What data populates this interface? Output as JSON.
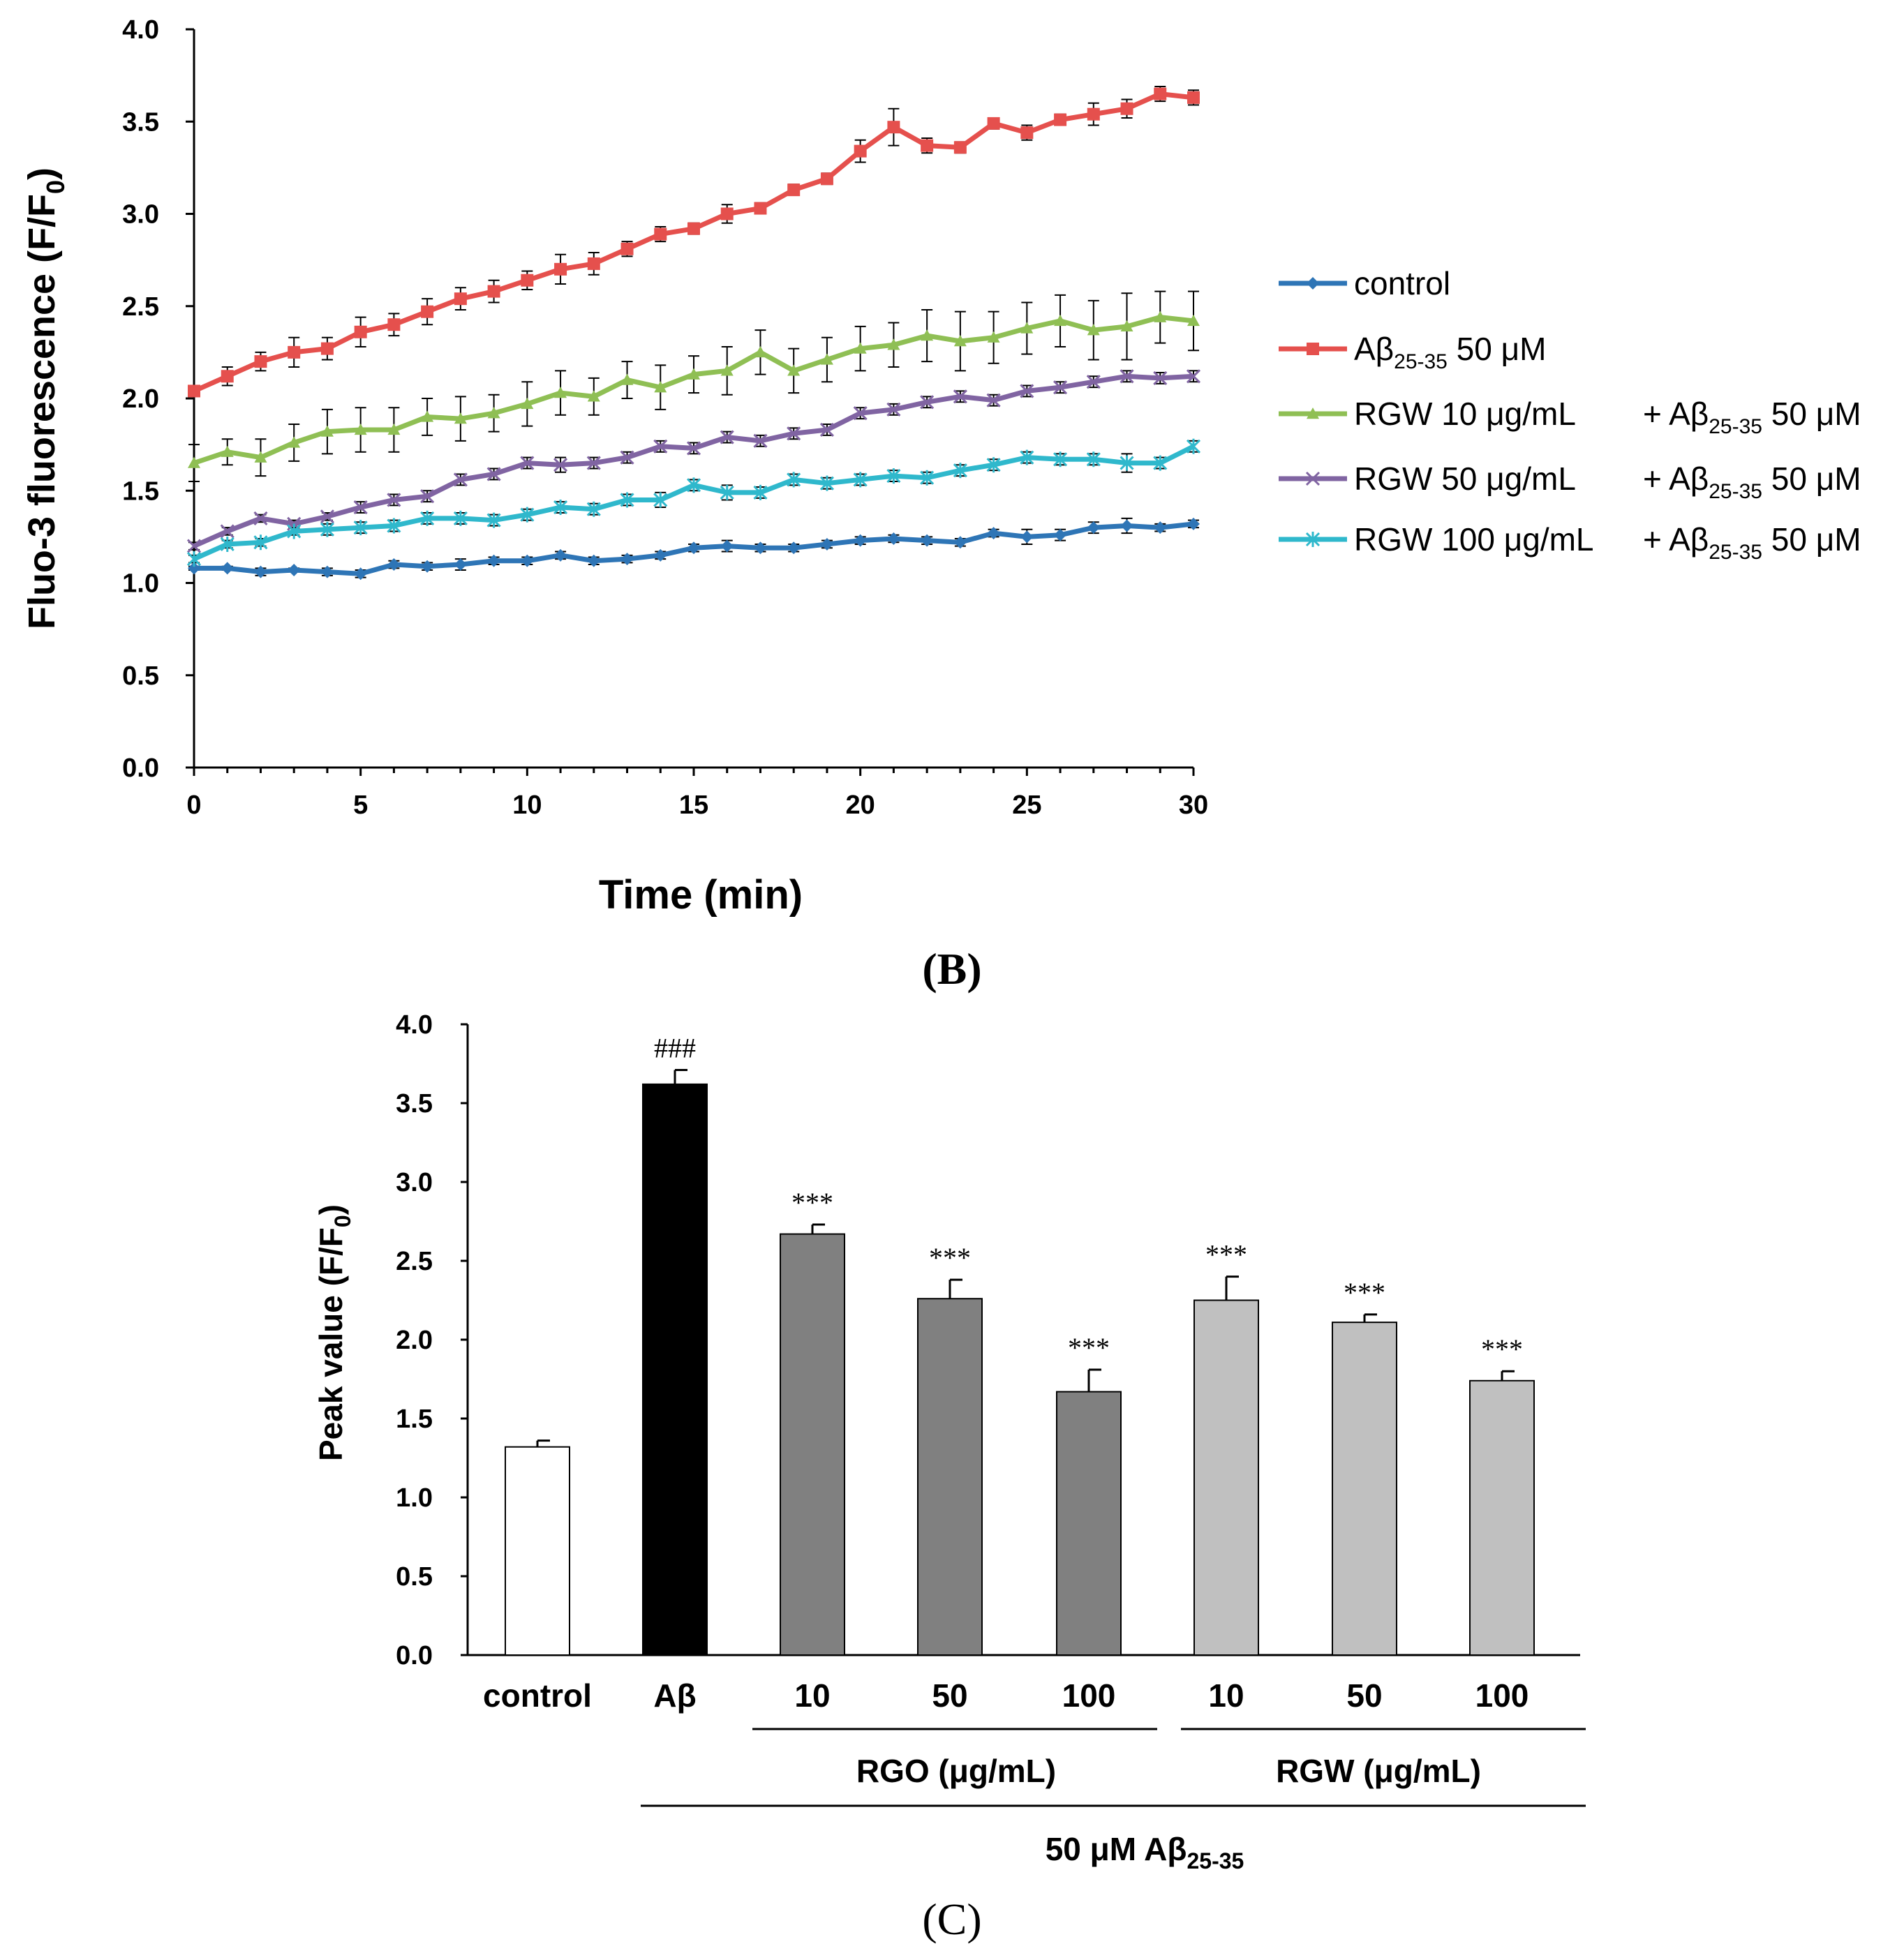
{
  "chart_data": [
    {
      "type": "line",
      "panel_label": "(B)",
      "xlabel": "Time (min)",
      "ylabel_main": "Fluo-3 fluorescence (F/F",
      "ylabel_sub": "0",
      "ylabel_close": ")",
      "xlim": [
        0,
        30
      ],
      "ylim": [
        0,
        4.0
      ],
      "x_ticks": [
        "0",
        "5",
        "10",
        "15",
        "20",
        "25",
        "30"
      ],
      "y_ticks": [
        "0.0",
        "0.5",
        "1.0",
        "1.5",
        "2.0",
        "2.5",
        "3.0",
        "3.5",
        "4.0"
      ],
      "x": [
        0,
        1,
        2,
        3,
        4,
        5,
        6,
        7,
        8,
        9,
        10,
        11,
        12,
        13,
        14,
        15,
        16,
        17,
        18,
        19,
        20,
        21,
        22,
        23,
        24,
        25,
        26,
        27,
        28,
        29,
        30
      ],
      "series": [
        {
          "name": "control",
          "legend_label": "control",
          "color": "#2e75b6",
          "marker": "diamond",
          "values": [
            1.08,
            1.08,
            1.06,
            1.07,
            1.06,
            1.05,
            1.1,
            1.09,
            1.1,
            1.12,
            1.12,
            1.15,
            1.12,
            1.13,
            1.15,
            1.19,
            1.2,
            1.19,
            1.19,
            1.21,
            1.23,
            1.24,
            1.23,
            1.22,
            1.27,
            1.25,
            1.26,
            1.3,
            1.31,
            1.3,
            1.32
          ],
          "errors": [
            0.01,
            0.01,
            0.02,
            0.01,
            0.02,
            0.02,
            0.02,
            0.02,
            0.03,
            0.02,
            0.02,
            0.02,
            0.02,
            0.02,
            0.02,
            0.02,
            0.03,
            0.02,
            0.02,
            0.02,
            0.02,
            0.02,
            0.02,
            0.02,
            0.02,
            0.04,
            0.03,
            0.03,
            0.04,
            0.02,
            0.02
          ]
        },
        {
          "name": "Abeta 50 uM",
          "legend_label": "Aβ",
          "legend_sub": "25-35",
          "legend_suffix": " 50 μM",
          "color": "#e5504d",
          "marker": "square",
          "values": [
            2.04,
            2.12,
            2.2,
            2.25,
            2.27,
            2.36,
            2.4,
            2.47,
            2.54,
            2.58,
            2.64,
            2.7,
            2.73,
            2.81,
            2.89,
            2.92,
            3.0,
            3.03,
            3.13,
            3.19,
            3.34,
            3.47,
            3.37,
            3.36,
            3.49,
            3.44,
            3.51,
            3.54,
            3.57,
            3.65,
            3.63
          ],
          "errors": [
            0.02,
            0.05,
            0.05,
            0.08,
            0.06,
            0.08,
            0.06,
            0.07,
            0.06,
            0.06,
            0.05,
            0.08,
            0.06,
            0.04,
            0.04,
            0.03,
            0.05,
            0.03,
            0.03,
            0.03,
            0.06,
            0.1,
            0.04,
            0.03,
            0.03,
            0.04,
            0.03,
            0.06,
            0.05,
            0.04,
            0.04
          ]
        },
        {
          "name": "RGW 10 + Abeta",
          "legend_label": "RGW 10 μg/mL",
          "legend_plus": "+ Aβ",
          "legend_sub": "25-35",
          "legend_suffix": " 50 μM",
          "color": "#8fbf54",
          "marker": "triangle",
          "values": [
            1.65,
            1.71,
            1.68,
            1.76,
            1.82,
            1.83,
            1.83,
            1.9,
            1.89,
            1.92,
            1.97,
            2.03,
            2.01,
            2.1,
            2.06,
            2.13,
            2.15,
            2.25,
            2.15,
            2.21,
            2.27,
            2.29,
            2.34,
            2.31,
            2.33,
            2.38,
            2.42,
            2.37,
            2.39,
            2.44,
            2.42
          ],
          "errors": [
            0.1,
            0.07,
            0.1,
            0.1,
            0.12,
            0.12,
            0.12,
            0.1,
            0.12,
            0.1,
            0.12,
            0.12,
            0.1,
            0.1,
            0.12,
            0.1,
            0.13,
            0.12,
            0.12,
            0.12,
            0.12,
            0.12,
            0.14,
            0.16,
            0.14,
            0.14,
            0.14,
            0.16,
            0.18,
            0.14,
            0.16
          ]
        },
        {
          "name": "RGW 50 + Abeta",
          "legend_label": "RGW 50 μg/mL",
          "legend_plus": "+ Aβ",
          "legend_sub": "25-35",
          "legend_suffix": " 50 μM",
          "color": "#8064a2",
          "marker": "x",
          "values": [
            1.2,
            1.28,
            1.35,
            1.32,
            1.36,
            1.41,
            1.45,
            1.47,
            1.56,
            1.59,
            1.65,
            1.64,
            1.65,
            1.68,
            1.74,
            1.73,
            1.79,
            1.77,
            1.81,
            1.83,
            1.92,
            1.94,
            1.98,
            2.01,
            1.99,
            2.04,
            2.06,
            2.09,
            2.12,
            2.11,
            2.12
          ],
          "errors": [
            0.02,
            0.02,
            0.02,
            0.02,
            0.02,
            0.03,
            0.03,
            0.03,
            0.03,
            0.03,
            0.03,
            0.04,
            0.03,
            0.03,
            0.03,
            0.03,
            0.03,
            0.03,
            0.03,
            0.03,
            0.03,
            0.03,
            0.03,
            0.03,
            0.03,
            0.03,
            0.03,
            0.03,
            0.03,
            0.03,
            0.03
          ]
        },
        {
          "name": "RGW 100 + Abeta",
          "legend_label": "RGW 100 μg/mL",
          "legend_plus": "+ Aβ",
          "legend_sub": "25-35",
          "legend_suffix": " 50 μM",
          "color": "#2fb8cc",
          "marker": "star",
          "values": [
            1.13,
            1.21,
            1.22,
            1.28,
            1.29,
            1.3,
            1.31,
            1.35,
            1.35,
            1.34,
            1.37,
            1.41,
            1.4,
            1.45,
            1.45,
            1.53,
            1.49,
            1.49,
            1.56,
            1.54,
            1.56,
            1.58,
            1.57,
            1.61,
            1.64,
            1.68,
            1.67,
            1.67,
            1.65,
            1.65,
            1.74
          ],
          "errors": [
            0.02,
            0.02,
            0.02,
            0.02,
            0.03,
            0.03,
            0.03,
            0.03,
            0.03,
            0.03,
            0.03,
            0.03,
            0.03,
            0.03,
            0.04,
            0.03,
            0.04,
            0.03,
            0.03,
            0.03,
            0.03,
            0.03,
            0.03,
            0.03,
            0.03,
            0.03,
            0.03,
            0.03,
            0.05,
            0.03,
            0.03
          ]
        }
      ]
    },
    {
      "type": "bar",
      "panel_label": "(C)",
      "ylabel_main": "Peak value (F/F",
      "ylabel_sub": "0",
      "ylabel_close": ")",
      "ylim": [
        0,
        4.0
      ],
      "y_ticks": [
        "0.0",
        "0.5",
        "1.0",
        "1.5",
        "2.0",
        "2.5",
        "3.0",
        "3.5",
        "4.0"
      ],
      "categories": [
        "control",
        "Aβ",
        "10",
        "50",
        "100",
        "10",
        "50",
        "100"
      ],
      "values": [
        1.32,
        3.62,
        2.67,
        2.26,
        1.67,
        2.25,
        2.11,
        1.74
      ],
      "errors": [
        0.04,
        0.09,
        0.06,
        0.12,
        0.14,
        0.15,
        0.05,
        0.06
      ],
      "fills": [
        "#ffffff",
        "#000000",
        "#808080",
        "#808080",
        "#808080",
        "#c0c0c0",
        "#c0c0c0",
        "#c0c0c0"
      ],
      "annotations": [
        "",
        "###",
        "***",
        "***",
        "***",
        "***",
        "***",
        "***"
      ],
      "group_labels": {
        "rgo": "RGO (μg/mL)",
        "rgw": "RGW (μg/mL)",
        "abeta_prefix": "50 μM Aβ",
        "abeta_sub": "25-35"
      }
    }
  ]
}
